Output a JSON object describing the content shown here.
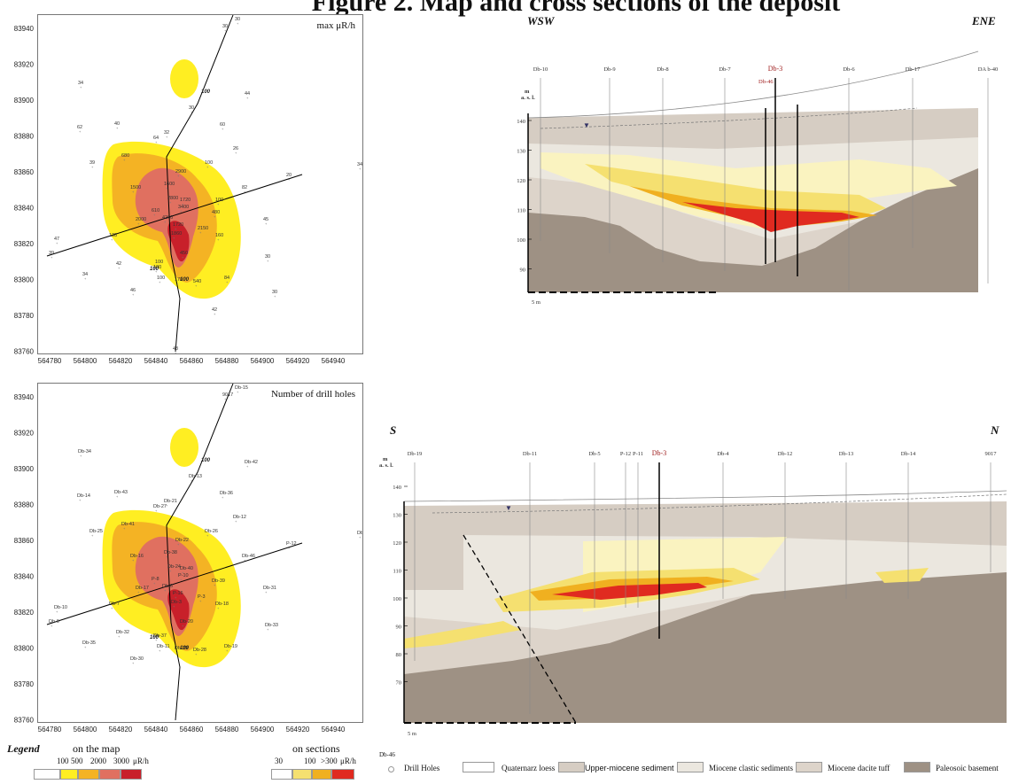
{
  "title": "Figure 2. Map and cross sections of the deposit",
  "map_top": {
    "title": "max μR/h",
    "y_ticks": [
      "83940",
      "83920",
      "83900",
      "83880",
      "83860",
      "83840",
      "83820",
      "83800",
      "83780",
      "83760"
    ],
    "x_ticks": [
      "564780",
      "564800",
      "564820",
      "564840",
      "564860",
      "564880",
      "564900",
      "564920",
      "564940"
    ],
    "values": [
      "30",
      "30",
      "34",
      "62",
      "40",
      "64",
      "32",
      "30",
      "44",
      "60",
      "26",
      "39",
      "680",
      "100",
      "2900",
      "1500",
      "1600",
      "1720",
      "2800",
      "3400",
      "610",
      "4260",
      "2000",
      "1720",
      "1860",
      "480",
      "82",
      "20",
      "34",
      "138",
      "2150",
      "160",
      "47",
      "39",
      "450",
      "45",
      "42",
      "100",
      "100",
      "30",
      "34",
      "46",
      "170",
      "540",
      "84",
      "30",
      "42",
      "48",
      "100",
      "100"
    ],
    "contour_label": "100"
  },
  "map_bottom": {
    "title": "Number of drill holes",
    "labels": [
      "Db-15",
      "9017",
      "Db-34",
      "Db-14",
      "Db-43",
      "Db-27",
      "Db-21",
      "Db-13",
      "Db-42",
      "Db-36",
      "Db-12",
      "Db-25",
      "Db-41",
      "Db-26",
      "Db-22",
      "Db-16",
      "Db-38",
      "Db-40",
      "Db-24",
      "P-10",
      "P-8",
      "Db-6",
      "Db-17",
      "P-16",
      "Db-3",
      "Db-39",
      "Db-46",
      "P-12",
      "Db-8",
      "Db-7",
      "P-3",
      "Db-18",
      "Db-10",
      "Db-9",
      "Db-20",
      "Db-31",
      "Db-32",
      "Db-37",
      "Db-11",
      "Db-33",
      "Db-35",
      "Db-30",
      "Db-29",
      "Db-28",
      "Db-19"
    ],
    "contour_label": "100"
  },
  "section_top": {
    "left_dir": "WSW",
    "right_dir": "ENE",
    "unit": "m\na. s. l.",
    "unit_line1": "m",
    "unit_line2": "a. s. l.",
    "y_ticks": [
      "140",
      "130",
      "120",
      "110",
      "100",
      "90"
    ],
    "drillholes": [
      "Db-10",
      "Db-9",
      "Db-8",
      "Db-7",
      "Db-3",
      "Db-6",
      "Db-17",
      "DA b-40"
    ],
    "highlight": "Db-46",
    "scale": "5 m"
  },
  "section_bottom": {
    "left_dir": "S",
    "right_dir": "N",
    "unit_line1": "m",
    "unit_line2": "a. s. l.",
    "y_ticks": [
      "140",
      "130",
      "120",
      "110",
      "100",
      "90",
      "80",
      "70"
    ],
    "drillholes": [
      "Db-19",
      "Db-11",
      "Db-5",
      "P-12",
      "P-11",
      "Db-3",
      "Db-4",
      "Db-12",
      "Db-13",
      "Db-14",
      "9017"
    ],
    "scale": "5 m"
  },
  "legend": {
    "title": "Legend",
    "map_caption": "on the map",
    "map_values": [
      "100",
      "500",
      "2000",
      "3000",
      "μR/h"
    ],
    "section_caption": "on sections",
    "section_values": [
      "30",
      "100",
      ">300",
      "μR/h"
    ],
    "drill_label": "Db-46",
    "items": [
      "Drill Holes",
      "Quaternarz loess",
      "Upper-miocene sediment",
      "Miocene clastic sediments",
      "Miocene dacite tuff",
      "Paleosoic basement"
    ]
  },
  "colors": {
    "c100": "#ffee22",
    "c500": "#f4b324",
    "c2000": "#e07060",
    "c3000": "#c8202a",
    "loess": "#ffffff",
    "upper": "#d6cdc3",
    "clastic": "#ebe7df",
    "tuff": "#ddd4ca",
    "basement": "#9e9184",
    "s30": "#faf3c0",
    "s100": "#f5e070",
    "s300a": "#f0b020",
    "s300b": "#e02a20"
  }
}
